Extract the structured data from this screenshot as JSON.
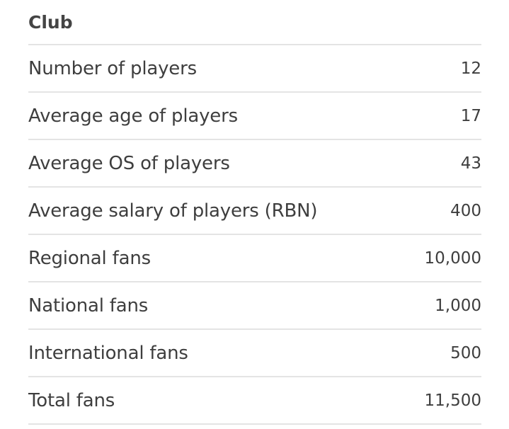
{
  "club": {
    "title": "Club",
    "rows": [
      {
        "label": "Number of players",
        "value": "12"
      },
      {
        "label": "Average age of players",
        "value": "17"
      },
      {
        "label": "Average OS of players",
        "value": "43"
      },
      {
        "label": "Average salary of players (RBN)",
        "value": "400"
      },
      {
        "label": "Regional fans",
        "value": "10,000"
      },
      {
        "label": "National fans",
        "value": "1,000"
      },
      {
        "label": "International fans",
        "value": "500"
      },
      {
        "label": "Total fans",
        "value": "11,500"
      }
    ]
  },
  "colors": {
    "text": "#3e3e3e",
    "divider": "#e4e4e4",
    "background": "#ffffff"
  }
}
